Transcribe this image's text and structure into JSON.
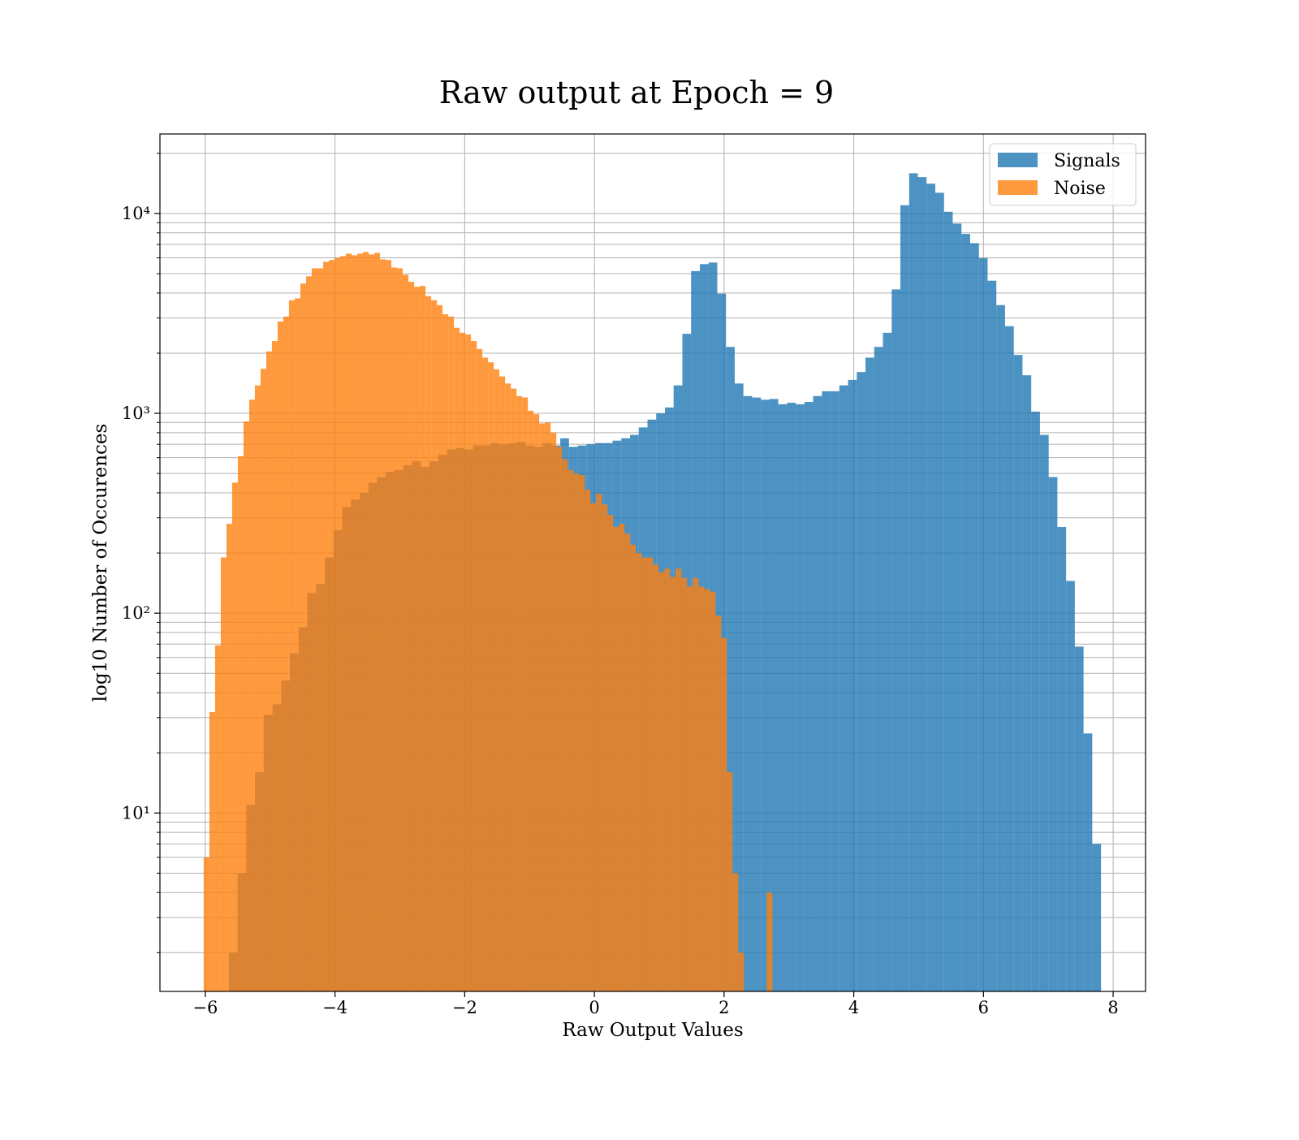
{
  "chart_data": {
    "type": "histogram",
    "title": "Raw output at Epoch = 9",
    "xlabel": "Raw Output Values",
    "ylabel": "log10 Number of Occurences",
    "yscale": "log",
    "grid": true,
    "legend": "upper right",
    "alpha": 0.8,
    "xlim": [
      -6.7,
      8.5
    ],
    "ylim": [
      1.28,
      25000
    ],
    "xticks": [
      {
        "value": -6,
        "label": "−6"
      },
      {
        "value": -4,
        "label": "−4"
      },
      {
        "value": -2,
        "label": "−2"
      },
      0,
      2,
      4,
      6,
      8
    ],
    "yticks": [
      {
        "value": 10,
        "label": "10¹"
      },
      {
        "value": 100,
        "label": "10²"
      },
      {
        "value": 1000,
        "label": "10³"
      },
      {
        "value": 10000,
        "label": "10⁴"
      }
    ],
    "yticks_minor": [
      2,
      3,
      4,
      5,
      6,
      7,
      8,
      9,
      20,
      30,
      40,
      50,
      60,
      70,
      80,
      90,
      200,
      300,
      400,
      500,
      600,
      700,
      800,
      900,
      2000,
      3000,
      4000,
      5000,
      6000,
      7000,
      8000,
      9000,
      20000
    ],
    "series": [
      {
        "name": "Signals",
        "color": "#1f77b4",
        "bins": [
          -5.637,
          -5.503,
          -5.368,
          -5.234,
          -5.099,
          -4.965,
          -4.83,
          -4.696,
          -4.561,
          -4.427,
          -4.292,
          -4.158,
          -4.023,
          -3.889,
          -3.754,
          -3.62,
          -3.485,
          -3.351,
          -3.216,
          -3.082,
          -2.947,
          -2.813,
          -2.678,
          -2.544,
          -2.409,
          -2.275,
          -2.14,
          -2.006,
          -1.871,
          -1.737,
          -1.602,
          -1.468,
          -1.333,
          -1.199,
          -1.064,
          -0.93,
          -0.795,
          -0.661,
          -0.526,
          -0.392,
          -0.257,
          -0.123,
          0.012,
          0.146,
          0.281,
          0.415,
          0.55,
          0.684,
          0.819,
          0.953,
          1.088,
          1.222,
          1.357,
          1.491,
          1.626,
          1.76,
          1.895,
          2.029,
          2.164,
          2.298,
          2.433,
          2.567,
          2.702,
          2.836,
          2.971,
          3.105,
          3.24,
          3.374,
          3.509,
          3.643,
          3.778,
          3.912,
          4.047,
          4.181,
          4.316,
          4.45,
          4.585,
          4.719,
          4.854,
          4.988,
          5.123,
          5.257,
          5.392,
          5.526,
          5.661,
          5.795,
          5.93,
          6.064,
          6.199,
          6.333,
          6.468,
          6.602,
          6.737,
          6.871,
          7.006,
          7.14,
          7.275,
          7.409,
          7.544,
          7.678,
          7.813
        ],
        "values": [
          2,
          5,
          11,
          16,
          31,
          35,
          46,
          63,
          85,
          126,
          140,
          190,
          260,
          340,
          370,
          400,
          450,
          480,
          510,
          520,
          550,
          575,
          540,
          575,
          620,
          660,
          670,
          660,
          690,
          690,
          710,
          700,
          710,
          720,
          690,
          680,
          710,
          690,
          750,
          680,
          690,
          700,
          710,
          710,
          730,
          750,
          780,
          850,
          930,
          1000,
          1070,
          1380,
          2500,
          5150,
          5580,
          5680,
          3970,
          2150,
          1410,
          1220,
          1200,
          1170,
          1180,
          1110,
          1130,
          1110,
          1140,
          1220,
          1290,
          1290,
          1380,
          1470,
          1610,
          1900,
          2150,
          2530,
          4170,
          11000,
          15900,
          15200,
          14100,
          12700,
          10200,
          8900,
          7900,
          7100,
          5980,
          4610,
          3480,
          2730,
          1960,
          1550,
          1020,
          780,
          480,
          270,
          145,
          68,
          25,
          7
        ]
      },
      {
        "name": "Noise",
        "color": "#ff7f0e",
        "bins": [
          -6.025,
          -5.937,
          -5.85,
          -5.762,
          -5.674,
          -5.587,
          -5.499,
          -5.411,
          -5.323,
          -5.236,
          -5.148,
          -5.06,
          -4.973,
          -4.885,
          -4.797,
          -4.71,
          -4.622,
          -4.534,
          -4.446,
          -4.359,
          -4.271,
          -4.183,
          -4.096,
          -4.008,
          -3.92,
          -3.833,
          -3.745,
          -3.657,
          -3.569,
          -3.482,
          -3.394,
          -3.306,
          -3.219,
          -3.131,
          -3.043,
          -2.956,
          -2.868,
          -2.78,
          -2.692,
          -2.605,
          -2.517,
          -2.429,
          -2.342,
          -2.254,
          -2.166,
          -2.079,
          -1.991,
          -1.903,
          -1.815,
          -1.728,
          -1.64,
          -1.552,
          -1.465,
          -1.377,
          -1.289,
          -1.202,
          -1.114,
          -1.026,
          -0.938,
          -0.851,
          -0.763,
          -0.675,
          -0.588,
          -0.5,
          -0.412,
          -0.325,
          -0.237,
          -0.149,
          -0.061,
          0.026,
          0.114,
          0.202,
          0.289,
          0.377,
          0.465,
          0.552,
          0.64,
          0.728,
          0.816,
          0.903,
          0.991,
          1.079,
          1.166,
          1.254,
          1.342,
          1.429,
          1.517,
          1.605,
          1.693,
          1.78,
          1.868,
          1.956,
          2.043,
          2.131,
          2.219,
          2.306,
          2.394,
          2.482,
          2.57,
          2.657,
          2.745
        ],
        "values": [
          6,
          32,
          69,
          190,
          280,
          450,
          610,
          910,
          1170,
          1380,
          1670,
          2040,
          2300,
          2880,
          3050,
          3680,
          3760,
          4460,
          4850,
          5320,
          5320,
          5730,
          5850,
          6000,
          6120,
          6300,
          6180,
          6300,
          6420,
          6240,
          6360,
          5900,
          5850,
          5370,
          5320,
          4940,
          4550,
          4300,
          4340,
          3860,
          3680,
          3480,
          3130,
          3050,
          2680,
          2530,
          2480,
          2300,
          2100,
          1900,
          1800,
          1660,
          1530,
          1410,
          1330,
          1220,
          1200,
          1030,
          990,
          890,
          900,
          800,
          680,
          590,
          520,
          500,
          490,
          415,
          355,
          395,
          350,
          310,
          270,
          280,
          250,
          220,
          200,
          190,
          190,
          175,
          160,
          167,
          152,
          167,
          150,
          136,
          150,
          136,
          132,
          128,
          97,
          75,
          16,
          5,
          2,
          0,
          0,
          0,
          0,
          4
        ]
      }
    ]
  }
}
